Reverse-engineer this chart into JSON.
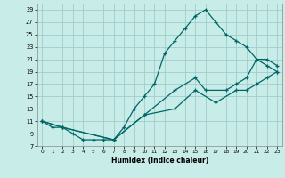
{
  "xlabel": "Humidex (Indice chaleur)",
  "background_color": "#c8ece8",
  "grid_color": "#a0cccc",
  "line_color": "#006666",
  "xlim": [
    -0.5,
    23.5
  ],
  "ylim": [
    7,
    30
  ],
  "xticks": [
    0,
    1,
    2,
    3,
    4,
    5,
    6,
    7,
    8,
    9,
    10,
    11,
    12,
    13,
    14,
    15,
    16,
    17,
    18,
    19,
    20,
    21,
    22,
    23
  ],
  "yticks": [
    7,
    9,
    11,
    13,
    15,
    17,
    19,
    21,
    23,
    25,
    27,
    29
  ],
  "line_top_x": [
    0,
    1,
    2,
    3,
    4,
    5,
    6,
    7,
    8,
    9,
    10,
    11,
    12,
    13,
    14,
    15,
    16,
    17,
    18,
    19,
    20,
    21,
    22,
    23
  ],
  "line_top_y": [
    11,
    10,
    10,
    9,
    8,
    8,
    8,
    8,
    10,
    13,
    15,
    17,
    22,
    24,
    26,
    28,
    29,
    27,
    25,
    24,
    23,
    21,
    20,
    19
  ],
  "line_mid_x": [
    0,
    2,
    7,
    10,
    13,
    15,
    16,
    18,
    19,
    20,
    21,
    22,
    23
  ],
  "line_mid_y": [
    11,
    10,
    8,
    12,
    16,
    18,
    16,
    16,
    17,
    18,
    21,
    21,
    20
  ],
  "line_low_x": [
    0,
    2,
    7,
    10,
    13,
    15,
    17,
    19,
    20,
    21,
    22,
    23
  ],
  "line_low_y": [
    11,
    10,
    8,
    12,
    13,
    16,
    14,
    16,
    16,
    17,
    18,
    19
  ]
}
